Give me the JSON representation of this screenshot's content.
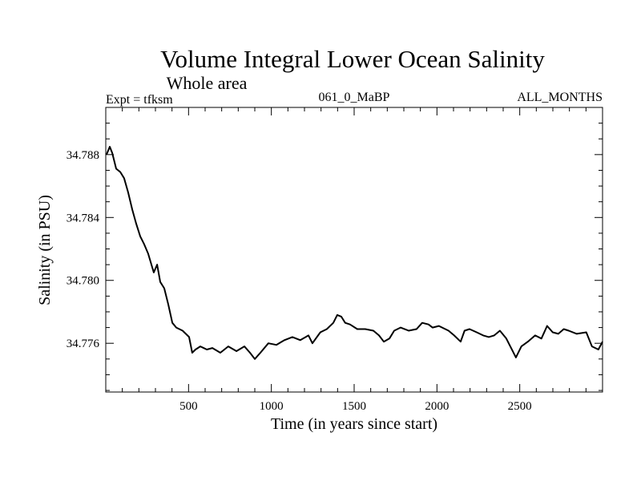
{
  "chart_data": {
    "type": "line",
    "title": "Volume Integral Lower Ocean Salinity",
    "subtitle": "Whole area",
    "annotations": {
      "experiment": "Expt = tfksm",
      "run_id": "061_0_MaBP",
      "months": "ALL_MONTHS"
    },
    "xlabel": "Time (in years since start)",
    "ylabel": "Salinity (in PSU)",
    "xlim": [
      0,
      3000
    ],
    "ylim": [
      34.7729,
      34.791
    ],
    "x_ticks_major": [
      500,
      1000,
      1500,
      2000,
      2500
    ],
    "x_tick_labels": [
      "500",
      "1000",
      "1500",
      "2000",
      "2500"
    ],
    "x_minor_step": 100,
    "y_ticks_major": [
      34.776,
      34.78,
      34.784,
      34.788
    ],
    "y_tick_labels": [
      "34.776",
      "34.780",
      "34.784",
      "34.788"
    ],
    "y_minor_step": 0.001,
    "grid": false,
    "legend": "none",
    "series": [
      {
        "name": "Salinity",
        "color": "#000000",
        "x": [
          5,
          24,
          39,
          63,
          87,
          111,
          135,
          160,
          184,
          208,
          232,
          256,
          290,
          310,
          329,
          353,
          377,
          402,
          426,
          464,
          503,
          522,
          542,
          571,
          610,
          644,
          692,
          740,
          789,
          837,
          871,
          900,
          934,
          982,
          1030,
          1079,
          1127,
          1175,
          1224,
          1248,
          1296,
          1335,
          1374,
          1398,
          1422,
          1446,
          1475,
          1519,
          1567,
          1616,
          1650,
          1679,
          1713,
          1742,
          1780,
          1829,
          1877,
          1911,
          1949,
          1973,
          2012,
          2070,
          2104,
          2143,
          2167,
          2197,
          2240,
          2279,
          2313,
          2346,
          2380,
          2419,
          2419,
          2448,
          2477,
          2510,
          2549,
          2593,
          2631,
          2665,
          2699,
          2733,
          2766,
          2796,
          2844,
          2902,
          2936,
          2975,
          3000
        ],
        "y": [
          34.788,
          34.7885,
          34.7881,
          34.7871,
          34.7869,
          34.7865,
          34.7856,
          34.7845,
          34.7836,
          34.7828,
          34.7823,
          34.7817,
          34.7805,
          34.781,
          34.7799,
          34.7795,
          34.7785,
          34.7773,
          34.777,
          34.7768,
          34.7764,
          34.7754,
          34.7756,
          34.7758,
          34.7756,
          34.7757,
          34.7754,
          34.7758,
          34.7755,
          34.7758,
          34.7754,
          34.775,
          34.7754,
          34.776,
          34.7759,
          34.7762,
          34.7764,
          34.7762,
          34.7765,
          34.776,
          34.7767,
          34.7769,
          34.7773,
          34.7778,
          34.7777,
          34.7773,
          34.7772,
          34.7769,
          34.7769,
          34.7768,
          34.7765,
          34.7761,
          34.7763,
          34.7768,
          34.777,
          34.7768,
          34.7769,
          34.7773,
          34.7772,
          34.777,
          34.7771,
          34.7768,
          34.7765,
          34.7761,
          34.7768,
          34.7769,
          34.7767,
          34.7765,
          34.7764,
          34.7765,
          34.7768,
          34.7763,
          34.7763,
          34.7757,
          34.7751,
          34.7758,
          34.7761,
          34.7765,
          34.7763,
          34.7771,
          34.7767,
          34.7766,
          34.7769,
          34.7768,
          34.7766,
          34.7767,
          34.7758,
          34.7756,
          34.7761
        ]
      }
    ]
  }
}
